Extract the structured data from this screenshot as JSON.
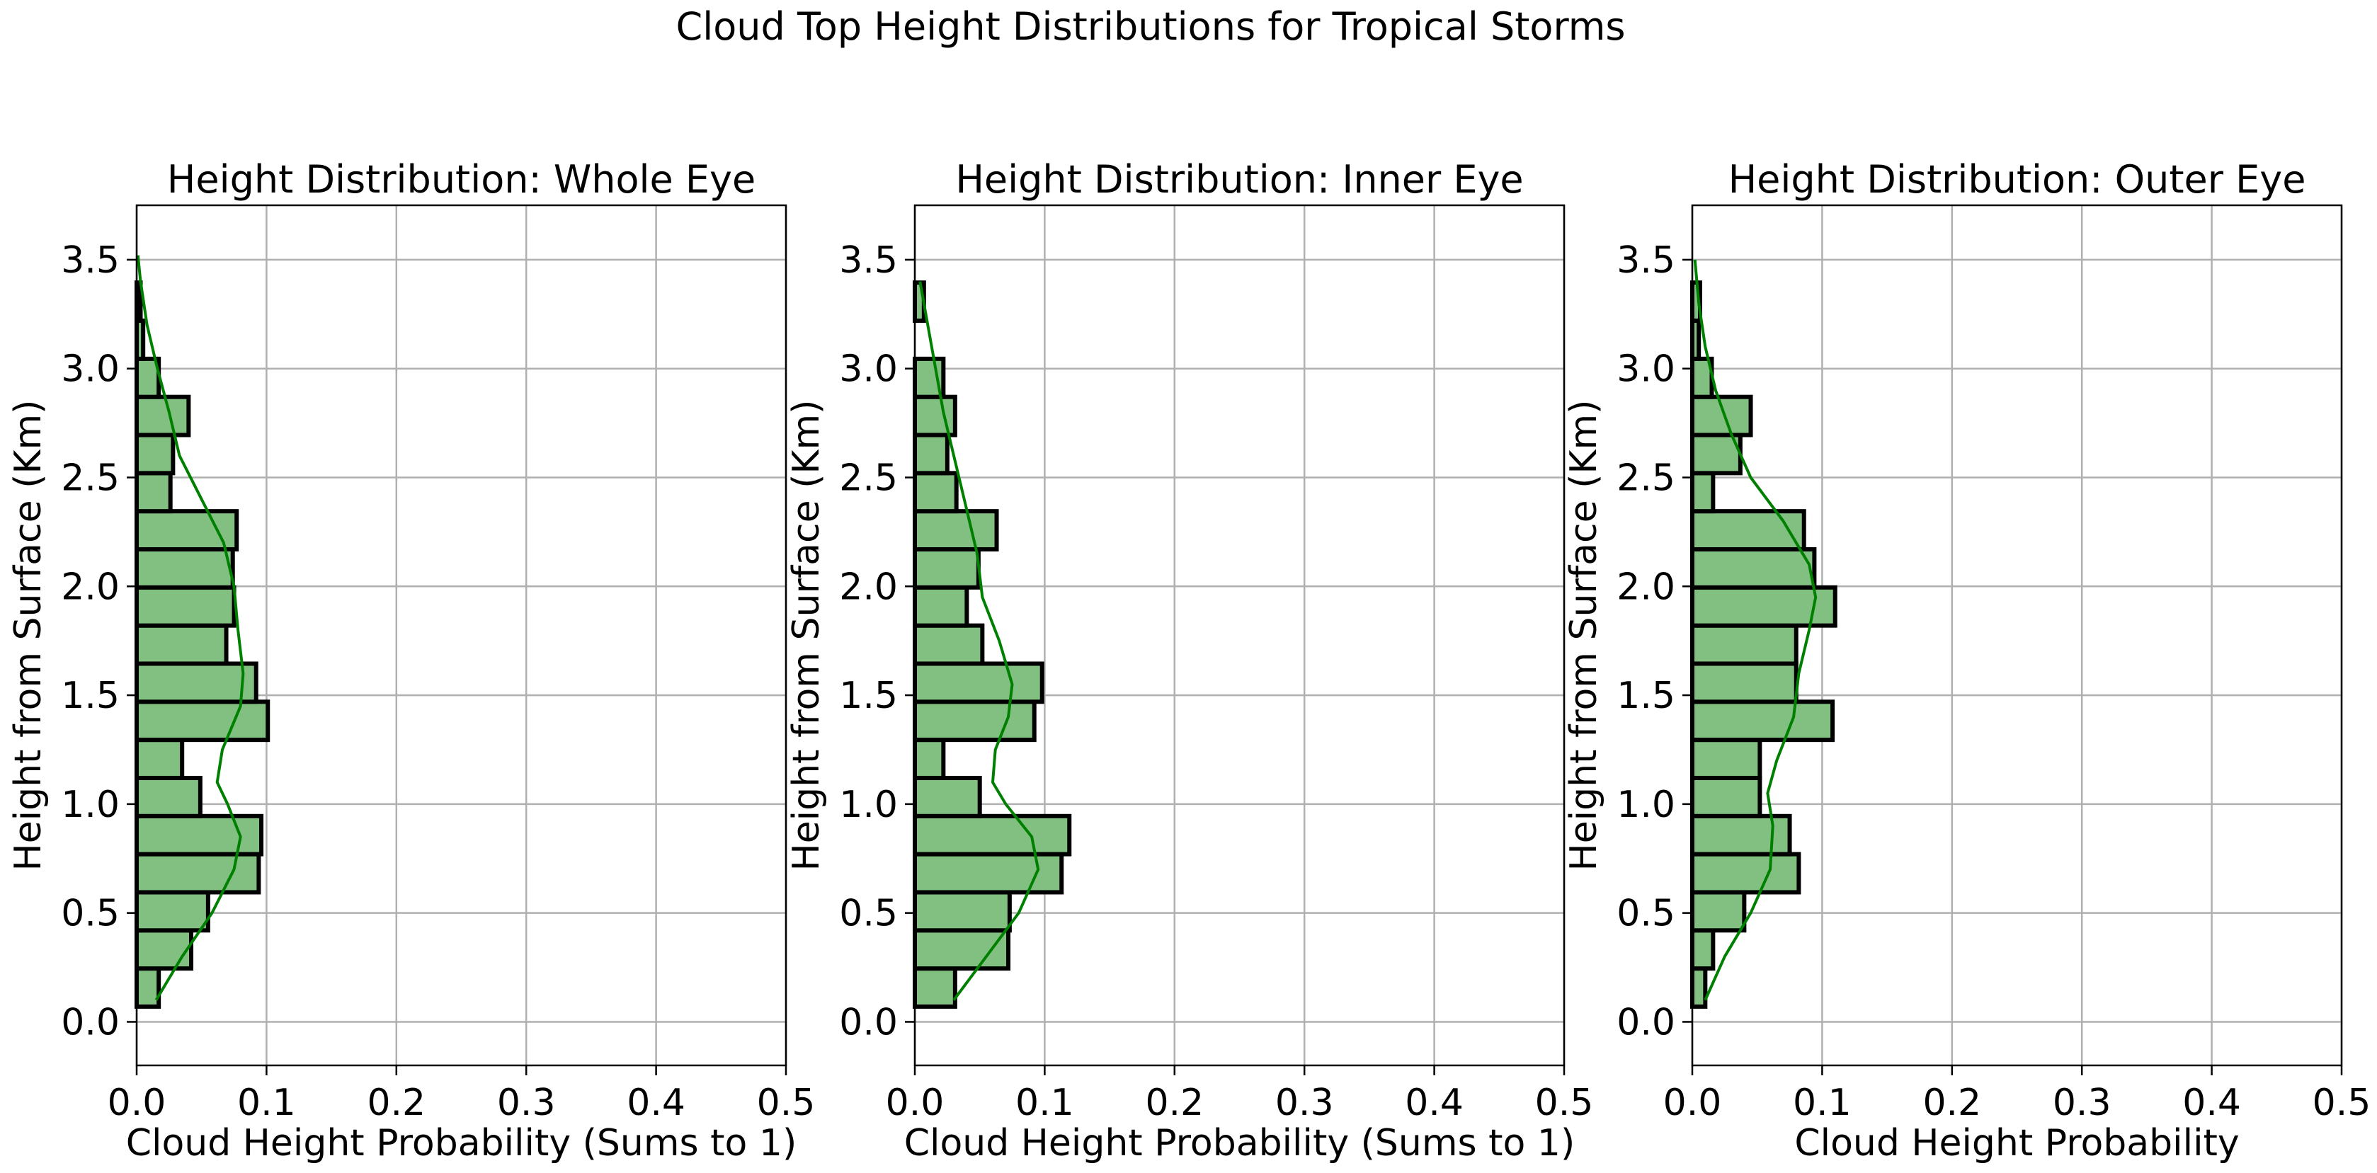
{
  "figure": {
    "suptitle": "Cloud Top Height Distributions for Tropical Storms"
  },
  "colors": {
    "bar_fill": "#82c082",
    "bar_edge": "#000000",
    "kde": "#008000",
    "grid": "#b0b0b0"
  },
  "chart_data": [
    {
      "type": "bar",
      "orientation": "horizontal",
      "title": "Height Distribution: Whole Eye",
      "xlabel": "Cloud Height Probability (Sums to 1)",
      "ylabel": "Height from Surface (Km)",
      "xlim": [
        0,
        0.5
      ],
      "ylim": [
        -0.2,
        3.75
      ],
      "xticks": [
        "0.0",
        "0.1",
        "0.2",
        "0.3",
        "0.4",
        "0.5"
      ],
      "yticks": [
        "0.0",
        "0.5",
        "1.0",
        "1.5",
        "2.0",
        "2.5",
        "3.0",
        "3.5"
      ],
      "grid": true,
      "bin_start": 0.07,
      "bin_width": 0.175,
      "values": [
        0.017,
        0.042,
        0.055,
        0.094,
        0.096,
        0.049,
        0.035,
        0.101,
        0.092,
        0.069,
        0.075,
        0.074,
        0.077,
        0.026,
        0.028,
        0.04,
        0.017,
        0.005,
        0.003
      ],
      "kde": {
        "heights": [
          0.1,
          0.3,
          0.5,
          0.7,
          0.85,
          1.0,
          1.1,
          1.25,
          1.45,
          1.6,
          1.8,
          2.0,
          2.2,
          2.4,
          2.6,
          2.8,
          3.0,
          3.2,
          3.4,
          3.52
        ],
        "density": [
          0.015,
          0.035,
          0.058,
          0.075,
          0.08,
          0.07,
          0.062,
          0.066,
          0.08,
          0.082,
          0.078,
          0.075,
          0.067,
          0.05,
          0.033,
          0.025,
          0.016,
          0.008,
          0.003,
          0.001
        ]
      }
    },
    {
      "type": "bar",
      "orientation": "horizontal",
      "title": "Height Distribution: Inner Eye",
      "xlabel": "Cloud Height Probability (Sums to 1)",
      "ylabel": "Height from Surface (Km)",
      "xlim": [
        0,
        0.5
      ],
      "ylim": [
        -0.2,
        3.75
      ],
      "xticks": [
        "0.0",
        "0.1",
        "0.2",
        "0.3",
        "0.4",
        "0.5"
      ],
      "yticks": [
        "0.0",
        "0.5",
        "1.0",
        "1.5",
        "2.0",
        "2.5",
        "3.0",
        "3.5"
      ],
      "grid": true,
      "bin_start": 0.07,
      "bin_width": 0.175,
      "values": [
        0.031,
        0.072,
        0.073,
        0.113,
        0.119,
        0.05,
        0.022,
        0.092,
        0.098,
        0.052,
        0.04,
        0.049,
        0.063,
        0.032,
        0.025,
        0.031,
        0.022,
        0.0,
        0.007
      ],
      "kde": {
        "heights": [
          0.1,
          0.3,
          0.5,
          0.7,
          0.85,
          1.0,
          1.1,
          1.25,
          1.4,
          1.55,
          1.75,
          1.95,
          2.15,
          2.35,
          2.6,
          2.8,
          3.0,
          3.2,
          3.4
        ],
        "density": [
          0.03,
          0.055,
          0.08,
          0.095,
          0.09,
          0.07,
          0.06,
          0.062,
          0.072,
          0.075,
          0.065,
          0.052,
          0.048,
          0.04,
          0.03,
          0.022,
          0.016,
          0.01,
          0.004
        ]
      }
    },
    {
      "type": "bar",
      "orientation": "horizontal",
      "title": "Height Distribution: Outer Eye",
      "xlabel": "Cloud Height Probability",
      "ylabel": "Height from Surface (Km)",
      "xlim": [
        0,
        0.5
      ],
      "ylim": [
        -0.2,
        3.75
      ],
      "xticks": [
        "0.0",
        "0.1",
        "0.2",
        "0.3",
        "0.4",
        "0.5"
      ],
      "yticks": [
        "0.0",
        "0.5",
        "1.0",
        "1.5",
        "2.0",
        "2.5",
        "3.0",
        "3.5"
      ],
      "grid": true,
      "bin_start": 0.07,
      "bin_width": 0.175,
      "values": [
        0.01,
        0.016,
        0.04,
        0.082,
        0.075,
        0.052,
        0.052,
        0.108,
        0.08,
        0.08,
        0.11,
        0.094,
        0.086,
        0.016,
        0.037,
        0.045,
        0.015,
        0.005,
        0.006
      ],
      "kde": {
        "heights": [
          0.1,
          0.3,
          0.5,
          0.7,
          0.9,
          1.05,
          1.2,
          1.4,
          1.6,
          1.8,
          1.95,
          2.1,
          2.3,
          2.5,
          2.7,
          2.9,
          3.1,
          3.3,
          3.5
        ],
        "density": [
          0.01,
          0.025,
          0.045,
          0.06,
          0.062,
          0.058,
          0.065,
          0.078,
          0.082,
          0.09,
          0.095,
          0.09,
          0.07,
          0.045,
          0.03,
          0.018,
          0.01,
          0.005,
          0.002
        ]
      }
    }
  ]
}
